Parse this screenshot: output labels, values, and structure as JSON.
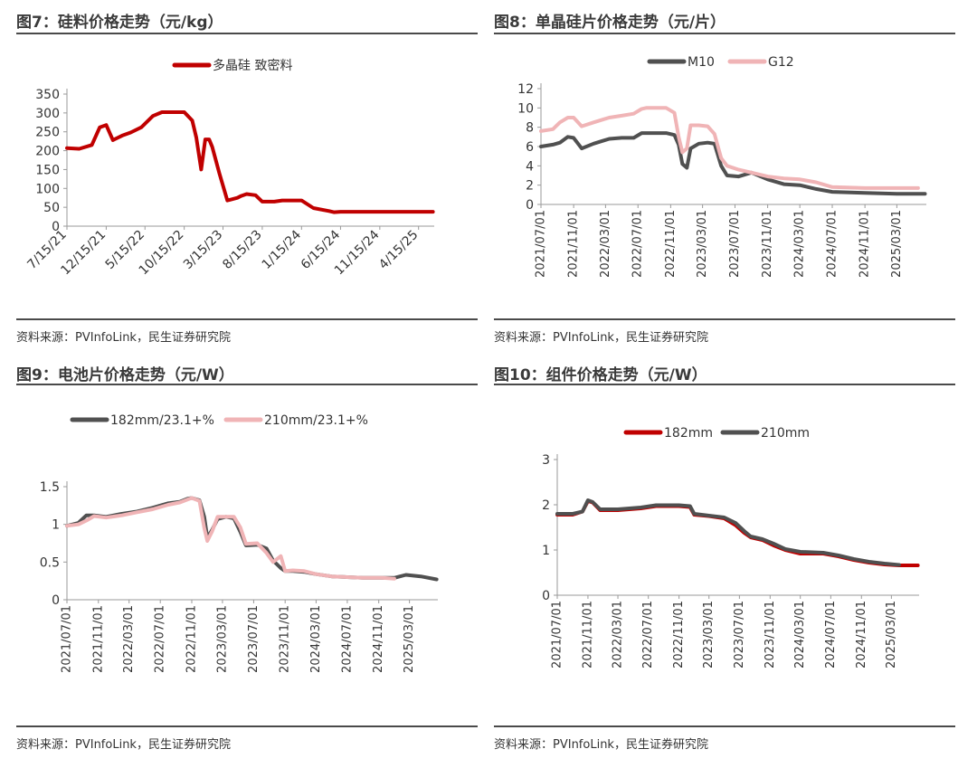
{
  "colors": {
    "red": "#c00000",
    "dark": "#505050",
    "pink": "#f0b4b6",
    "axis": "#9a9a9a"
  },
  "panels": [
    {
      "title": "图7：硅料价格走势（元/kg）",
      "source": "资料来源：PVInfoLink，民生证券研究院"
    },
    {
      "title": "图8：单晶硅片价格走势（元/片）",
      "source": "资料来源：PVInfoLink，民生证券研究院"
    },
    {
      "title": "图9：电池片价格走势（元/W）",
      "source": "资料来源：PVInfoLink，民生证券研究院"
    },
    {
      "title": "图10：组件价格走势（元/W）",
      "source": "资料来源：PVInfoLink，民生证券研究院"
    }
  ],
  "chart_data": [
    {
      "type": "line",
      "x_dates": [
        "2021-07-15",
        "2021-09-01",
        "2021-10-20",
        "2021-11-20",
        "2021-12-15",
        "2022-01-10",
        "2022-02-15",
        "2022-03-20",
        "2022-05-01",
        "2022-06-15",
        "2022-07-20",
        "2022-08-20",
        "2022-10-15",
        "2022-11-15",
        "2022-12-01",
        "2022-12-20",
        "2023-01-05",
        "2023-01-20",
        "2023-02-01",
        "2023-03-01",
        "2023-04-01",
        "2023-05-10",
        "2023-05-25",
        "2023-06-15",
        "2023-07-20",
        "2023-08-15",
        "2023-09-10",
        "2023-10-01",
        "2023-11-01",
        "2024-01-15",
        "2024-03-01",
        "2024-05-01",
        "2024-05-20",
        "2024-06-15",
        "2024-09-01",
        "2024-11-15",
        "2025-02-01",
        "2025-04-15",
        "2025-06-10"
      ],
      "x_ticks": [
        "7/15/21",
        "12/15/21",
        "5/15/22",
        "10/15/22",
        "3/15/23",
        "8/15/23",
        "1/15/24",
        "6/15/24",
        "11/15/24",
        "4/15/25"
      ],
      "ylim": [
        0,
        350
      ],
      "y_ticks": [
        "0",
        "50",
        "100",
        "150",
        "200",
        "250",
        "300",
        "350"
      ],
      "series": [
        {
          "name": "多晶硅 致密料",
          "color": "#c00000",
          "values": [
            207,
            205,
            215,
            262,
            268,
            228,
            240,
            248,
            262,
            292,
            302,
            302,
            302,
            280,
            235,
            150,
            230,
            230,
            210,
            140,
            68,
            75,
            80,
            85,
            82,
            65,
            65,
            65,
            68,
            68,
            48,
            40,
            37,
            38,
            38,
            38,
            38,
            38,
            38
          ]
        }
      ]
    },
    {
      "type": "line",
      "x_dates": [
        "2021-07-01",
        "2021-08-15",
        "2021-09-10",
        "2021-10-10",
        "2021-11-01",
        "2021-12-01",
        "2022-01-15",
        "2022-02-20",
        "2022-03-15",
        "2022-05-01",
        "2022-06-15",
        "2022-07-15",
        "2022-08-01",
        "2022-10-15",
        "2022-11-15",
        "2022-12-01",
        "2022-12-15",
        "2023-01-01",
        "2023-01-15",
        "2023-02-15",
        "2023-03-20",
        "2023-04-15",
        "2023-05-10",
        "2023-06-01",
        "2023-07-15",
        "2023-09-01",
        "2023-11-01",
        "2024-01-01",
        "2024-03-01",
        "2024-05-01",
        "2024-07-01",
        "2024-11-01",
        "2025-03-01",
        "2025-05-20",
        "2025-06-15"
      ],
      "x_ticks": [
        "2021/07/01",
        "2021/11/01",
        "2022/03/01",
        "2022/07/01",
        "2022/11/01",
        "2023/03/01",
        "2023/07/01",
        "2023/11/01",
        "2024/03/01",
        "2024/07/01",
        "2024/11/01",
        "2025/03/01"
      ],
      "ylim": [
        0,
        12
      ],
      "y_ticks": [
        "0",
        "2",
        "4",
        "6",
        "8",
        "10",
        "12"
      ],
      "series": [
        {
          "name": "M10",
          "color": "#505050",
          "values": [
            6.0,
            6.2,
            6.4,
            7.0,
            6.9,
            5.8,
            6.3,
            6.6,
            6.8,
            6.9,
            6.9,
            7.4,
            7.4,
            7.4,
            7.2,
            6.2,
            4.2,
            3.8,
            5.8,
            6.3,
            6.4,
            6.3,
            4.0,
            3.0,
            2.9,
            3.3,
            2.6,
            2.1,
            2.0,
            1.6,
            1.3,
            1.2,
            1.1,
            1.1,
            1.1
          ]
        },
        {
          "name": "G12",
          "color": "#f0b4b6",
          "values": [
            7.6,
            7.8,
            8.5,
            9.0,
            9.0,
            8.1,
            8.5,
            8.8,
            9.0,
            9.2,
            9.4,
            9.9,
            10.0,
            10.0,
            9.5,
            7.0,
            5.4,
            5.8,
            8.2,
            8.2,
            8.1,
            7.3,
            4.8,
            4.0,
            3.6,
            3.3,
            2.9,
            2.7,
            2.6,
            2.3,
            1.8,
            1.7,
            1.7,
            1.7,
            null
          ]
        }
      ]
    },
    {
      "type": "line",
      "x_dates": [
        "2021-07-01",
        "2021-08-15",
        "2021-09-15",
        "2021-10-15",
        "2021-12-01",
        "2022-02-01",
        "2022-04-01",
        "2022-06-01",
        "2022-08-01",
        "2022-09-15",
        "2022-10-15",
        "2022-11-01",
        "2022-12-01",
        "2022-12-20",
        "2023-01-01",
        "2023-01-20",
        "2023-02-10",
        "2023-03-15",
        "2023-04-15",
        "2023-05-10",
        "2023-06-01",
        "2023-07-15",
        "2023-08-20",
        "2023-09-15",
        "2023-10-15",
        "2023-11-01",
        "2023-12-01",
        "2024-01-15",
        "2024-03-01",
        "2024-05-01",
        "2024-07-01",
        "2024-09-01",
        "2024-11-15",
        "2025-01-01",
        "2025-02-15",
        "2025-04-15",
        "2025-06-15"
      ],
      "x_ticks": [
        "2021/07/01",
        "2021/11/01",
        "2022/03/01",
        "2022/07/01",
        "2022/11/01",
        "2023/03/01",
        "2023/07/01",
        "2023/11/01",
        "2024/03/01",
        "2024/07/01",
        "2024/11/01",
        "2025/03/01"
      ],
      "ylim": [
        0,
        1.5
      ],
      "y_ticks": [
        "0",
        "0.5",
        "1",
        "1.5"
      ],
      "series": [
        {
          "name": "182mm/23.1+%",
          "color": "#505050",
          "values": [
            0.98,
            1.02,
            1.12,
            1.12,
            1.1,
            1.14,
            1.17,
            1.22,
            1.28,
            1.3,
            1.34,
            1.35,
            1.32,
            1.1,
            0.82,
            0.93,
            1.07,
            1.1,
            1.08,
            0.9,
            0.72,
            0.73,
            0.68,
            0.52,
            0.42,
            0.38,
            0.38,
            0.37,
            0.34,
            0.31,
            0.3,
            0.29,
            0.29,
            0.29,
            0.33,
            0.31,
            0.27
          ]
        },
        {
          "name": "210mm/23.1+%",
          "color": "#f0b4b6",
          "values": [
            0.98,
            1.0,
            1.05,
            1.11,
            1.09,
            1.12,
            1.16,
            1.2,
            1.26,
            1.29,
            1.33,
            1.35,
            1.31,
            0.95,
            0.78,
            0.91,
            1.1,
            1.1,
            1.1,
            0.96,
            0.74,
            0.75,
            0.62,
            0.5,
            0.58,
            0.38,
            0.39,
            0.38,
            0.34,
            0.31,
            0.3,
            0.29,
            0.29,
            0.28,
            null,
            null,
            null
          ]
        }
      ]
    },
    {
      "type": "line",
      "x_dates": [
        "2021-07-01",
        "2021-09-01",
        "2021-10-10",
        "2021-11-01",
        "2021-11-20",
        "2021-12-20",
        "2022-03-01",
        "2022-06-01",
        "2022-08-01",
        "2022-11-01",
        "2022-12-15",
        "2023-01-01",
        "2023-03-01",
        "2023-05-01",
        "2023-06-15",
        "2023-07-20",
        "2023-08-15",
        "2023-10-01",
        "2023-11-15",
        "2024-01-01",
        "2024-03-01",
        "2024-06-01",
        "2024-08-01",
        "2024-10-01",
        "2024-12-01",
        "2025-02-01",
        "2025-04-01",
        "2025-06-15"
      ],
      "x_ticks": [
        "2021/07/01",
        "2021/11/01",
        "2022/03/01",
        "2022/07/01",
        "2022/11/01",
        "2023/03/01",
        "2023/07/01",
        "2023/11/01",
        "2024/03/01",
        "2024/07/01",
        "2024/11/01",
        "2025/03/01"
      ],
      "ylim": [
        0,
        3
      ],
      "y_ticks": [
        "0",
        "1",
        "2",
        "3"
      ],
      "series": [
        {
          "name": "182mm",
          "color": "#c00000",
          "values": [
            1.78,
            1.78,
            1.85,
            2.08,
            2.05,
            1.88,
            1.88,
            1.92,
            1.97,
            1.97,
            1.95,
            1.78,
            1.75,
            1.7,
            1.55,
            1.38,
            1.28,
            1.22,
            1.1,
            1.0,
            0.92,
            0.92,
            0.86,
            0.78,
            0.72,
            0.68,
            0.66,
            0.66
          ]
        },
        {
          "name": "210mm",
          "color": "#505050",
          "values": [
            1.8,
            1.8,
            1.85,
            2.1,
            2.06,
            1.9,
            1.9,
            1.94,
            1.99,
            1.99,
            1.97,
            1.8,
            1.76,
            1.72,
            1.6,
            1.42,
            1.3,
            1.24,
            1.14,
            1.02,
            0.96,
            0.94,
            0.88,
            0.8,
            0.74,
            0.7,
            0.67,
            null
          ]
        }
      ]
    }
  ]
}
